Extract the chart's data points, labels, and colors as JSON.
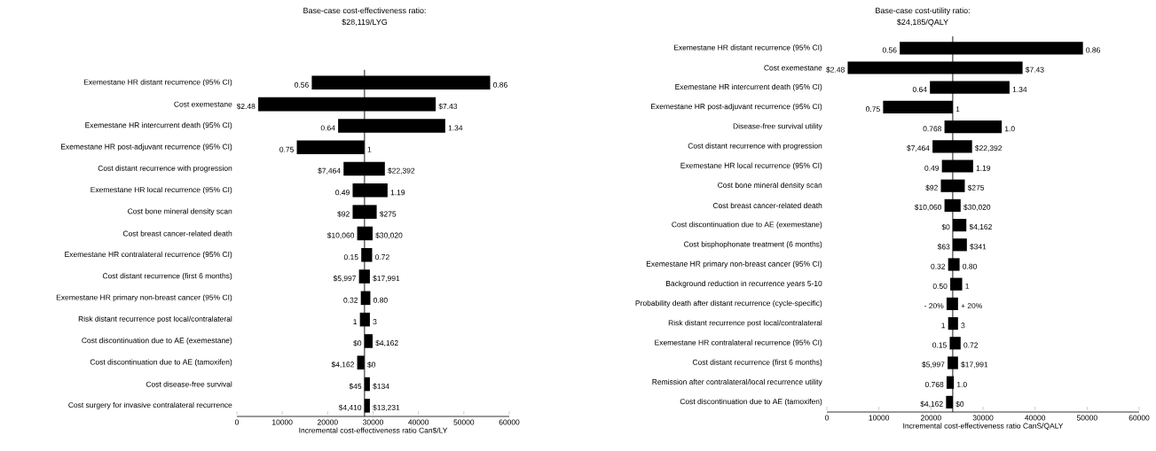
{
  "chart_data": [
    {
      "type": "bar",
      "orientation": "horizontal",
      "title": "Base-case cost-effectiveness ratio:",
      "subtitle": "$28,119/LYG",
      "xlabel": "Incremental cost-effectiveness ratio Can$/LY",
      "categories": [
        "Exemestane HR distant recurrence (95% CI)",
        "Cost exemestane",
        "Exemestane HR intercurrent death (95% CI)",
        "Exemestane HR post-adjuvant recurrence (95% CI)",
        "Cost distant recurrence with progression",
        "Exemestane HR local recurrence (95% CI)",
        "Cost bone mineral density scan",
        "Cost breast cancer-related death",
        "Exemestane HR contralateral recurrence (95% CI)",
        "Cost distant recurrence (first 6 months)",
        "Exemestane HR primary non-breast cancer (95% CI)",
        "Risk distant recurrence post local/contralateral",
        "Cost discontinuation due to AE (exemestane)",
        "Cost discontinuation due to AE (tamoxifen)",
        "Cost disease-free survival",
        "Cost surgery for invasive contralateral recurrence"
      ],
      "base": [
        16500,
        4700,
        22300,
        13200,
        23500,
        25500,
        25500,
        26500,
        27400,
        26900,
        27300,
        27100,
        28100,
        26500,
        28100,
        28100
      ],
      "values": [
        39300,
        39100,
        23600,
        14900,
        9100,
        7700,
        5300,
        3400,
        2400,
        2400,
        2100,
        2200,
        1800,
        1600,
        1200,
        1200
      ],
      "color": "#000000",
      "xlim": [
        0,
        60000
      ],
      "xticks": [
        0,
        10000,
        20000,
        30000,
        40000,
        50000,
        60000
      ],
      "ref_lines": [
        {
          "axis": "x",
          "value": 28119,
          "color": "#000000"
        }
      ],
      "annotations": [
        {
          "text": "0.56",
          "x": 16500,
          "y": "Exemestane HR distant recurrence (95% CI)"
        },
        {
          "text": "0.86",
          "x": 55800,
          "y": "Exemestane HR distant recurrence (95% CI)"
        },
        {
          "text": "$2.48",
          "x": 4700,
          "y": "Cost exemestane"
        },
        {
          "text": "$7.43",
          "x": 43800,
          "y": "Cost exemestane"
        },
        {
          "text": "0.64",
          "x": 22300,
          "y": "Exemestane HR intercurrent death (95% CI)"
        },
        {
          "text": "1.34",
          "x": 45900,
          "y": "Exemestane HR intercurrent death (95% CI)"
        },
        {
          "text": "0.75",
          "x": 13200,
          "y": "Exemestane HR post-adjuvant recurrence (95% CI)"
        },
        {
          "text": "1",
          "x": 28100,
          "y": "Exemestane HR post-adjuvant recurrence (95% CI)"
        },
        {
          "text": "$7,464",
          "x": 23500,
          "y": "Cost distant recurrence with progression"
        },
        {
          "text": "$22,392",
          "x": 32600,
          "y": "Cost distant recurrence with progression"
        },
        {
          "text": "0.49",
          "x": 25500,
          "y": "Exemestane HR local recurrence (95% CI)"
        },
        {
          "text": "1.19",
          "x": 33200,
          "y": "Exemestane HR local recurrence (95% CI)"
        },
        {
          "text": "$92",
          "x": 25500,
          "y": "Cost bone mineral density scan"
        },
        {
          "text": "$275",
          "x": 30800,
          "y": "Cost bone mineral density scan"
        },
        {
          "text": "$10,060",
          "x": 26500,
          "y": "Cost breast cancer-related death"
        },
        {
          "text": "$30,020",
          "x": 29900,
          "y": "Cost breast cancer-related death"
        },
        {
          "text": "0.15",
          "x": 27400,
          "y": "Exemestane HR contralateral recurrence (95% CI)"
        },
        {
          "text": "0.72",
          "x": 29800,
          "y": "Exemestane HR contralateral recurrence (95% CI)"
        },
        {
          "text": "$5,997",
          "x": 26900,
          "y": "Cost distant recurrence (first 6 months)"
        },
        {
          "text": "$17,991",
          "x": 29300,
          "y": "Cost distant recurrence (first 6 months)"
        },
        {
          "text": "0.32",
          "x": 27300,
          "y": "Exemestane HR primary non-breast cancer (95% CI)"
        },
        {
          "text": "0.80",
          "x": 29400,
          "y": "Exemestane HR primary non-breast cancer (95% CI)"
        },
        {
          "text": "1",
          "x": 27100,
          "y": "Risk distant recurrence post local/contralateral"
        },
        {
          "text": "3",
          "x": 29300,
          "y": "Risk distant recurrence post local/contralateral"
        },
        {
          "text": "$0",
          "x": 28100,
          "y": "Cost discontinuation due to AE (exemestane)"
        },
        {
          "text": "$4,162",
          "x": 29900,
          "y": "Cost discontinuation due to AE (exemestane)"
        },
        {
          "text": "$4,162",
          "x": 26500,
          "y": "Cost discontinuation due to AE (tamoxifen)"
        },
        {
          "text": "$0",
          "x": 28100,
          "y": "Cost discontinuation due to AE (tamoxifen)"
        },
        {
          "text": "$45",
          "x": 28100,
          "y": "Cost disease-free survival"
        },
        {
          "text": "$134",
          "x": 29300,
          "y": "Cost disease-free survival"
        },
        {
          "text": "$4,410",
          "x": 28100,
          "y": "Cost surgery for invasive contralateral recurrence"
        },
        {
          "text": "$13,231",
          "x": 29300,
          "y": "Cost surgery for invasive contralateral recurrence"
        }
      ]
    },
    {
      "type": "bar",
      "orientation": "horizontal",
      "title": "Base-case cost-utility ratio:",
      "subtitle": "$24,185/QALY",
      "xlabel": "Incremental cost-effectiveness ratio CanS/QALY",
      "categories": [
        "Exemestane HR distant recurrence (95% CI)",
        "Cost exemestane",
        "Exemestane HR intercurrent death (95% CI)",
        "Exemestane HR post-adjuvant recurrence (95% CI)",
        "Disease-free survival utility",
        "Cost distant recurrence with progression",
        "Exemestane HR local recurrence (95% CI)",
        "Cost bone mineral density scan",
        "Cost breast cancer-related death",
        "Cost discontinuation due to AE (exemestane)",
        "Cost bisphophonate treatment (6 months)",
        "Exemestane HR primary non-breast cancer (95% CI)",
        "Background reduction in recurrence years 5-10",
        "Probability death after distant recurrence (cycle-specific)",
        "Risk distant recurrence post local/contralateral",
        "Exemestane HR contralateral recurrence (95% CI)",
        "Cost distant recurrence (first 6 months)",
        "Remission after contralateral/local recurrence utility",
        "Cost discontinuation due to AE (tamoxifen)"
      ],
      "base": [
        14000,
        4000,
        19800,
        10800,
        22600,
        20300,
        22100,
        21900,
        22600,
        24200,
        24200,
        23300,
        23700,
        23000,
        23300,
        23600,
        23200,
        23000,
        22900
      ],
      "values": [
        35200,
        33600,
        15300,
        13400,
        11000,
        7600,
        6000,
        4600,
        3100,
        2600,
        2700,
        2200,
        2300,
        2200,
        1900,
        2100,
        2000,
        1400,
        1300
      ],
      "color": "#000000",
      "xlim": [
        0,
        60000
      ],
      "xticks": [
        0,
        10000,
        20000,
        30000,
        40000,
        50000,
        60000
      ],
      "ref_lines": [
        {
          "axis": "x",
          "value": 24185,
          "color": "#000000"
        }
      ],
      "annotations": [
        {
          "text": "0.56",
          "x": 14000,
          "y": "Exemestane HR distant recurrence (95% CI)"
        },
        {
          "text": "0.86",
          "x": 49200,
          "y": "Exemestane HR distant recurrence (95% CI)"
        },
        {
          "text": "$2.48",
          "x": 4000,
          "y": "Cost exemestane"
        },
        {
          "text": "$7.43",
          "x": 37600,
          "y": "Cost exemestane"
        },
        {
          "text": "0.64",
          "x": 19800,
          "y": "Exemestane HR intercurrent death (95% CI)"
        },
        {
          "text": "1.34",
          "x": 35100,
          "y": "Exemestane HR intercurrent death (95% CI)"
        },
        {
          "text": "0.75",
          "x": 10800,
          "y": "Exemestane HR post-adjuvant recurrence (95% CI)"
        },
        {
          "text": "1",
          "x": 24200,
          "y": "Exemestane HR post-adjuvant recurrence (95% CI)"
        },
        {
          "text": "0.768",
          "x": 22600,
          "y": "Disease-free survival utility"
        },
        {
          "text": "1.0",
          "x": 33600,
          "y": "Disease-free survival utility"
        },
        {
          "text": "$7,464",
          "x": 20300,
          "y": "Cost distant recurrence with progression"
        },
        {
          "text": "$22,392",
          "x": 27900,
          "y": "Cost distant recurrence with progression"
        },
        {
          "text": "0.49",
          "x": 22100,
          "y": "Exemestane HR local recurrence (95% CI)"
        },
        {
          "text": "1.19",
          "x": 28100,
          "y": "Exemestane HR local recurrence (95% CI)"
        },
        {
          "text": "$92",
          "x": 21900,
          "y": "Cost bone mineral density scan"
        },
        {
          "text": "$275",
          "x": 26500,
          "y": "Cost bone mineral density scan"
        },
        {
          "text": "$10,060",
          "x": 22600,
          "y": "Cost breast cancer-related death"
        },
        {
          "text": "$30,020",
          "x": 25700,
          "y": "Cost breast cancer-related death"
        },
        {
          "text": "$0",
          "x": 24200,
          "y": "Cost discontinuation due to AE (exemestane)"
        },
        {
          "text": "$4,162",
          "x": 26800,
          "y": "Cost discontinuation due to AE (exemestane)"
        },
        {
          "text": "$63",
          "x": 24200,
          "y": "Cost bisphophonate treatment (6 months)"
        },
        {
          "text": "$341",
          "x": 26900,
          "y": "Cost bisphophonate treatment (6 months)"
        },
        {
          "text": "0.32",
          "x": 23300,
          "y": "Exemestane HR primary non-breast cancer (95% CI)"
        },
        {
          "text": "0.80",
          "x": 25500,
          "y": "Exemestane HR primary non-breast cancer (95% CI)"
        },
        {
          "text": "0.50",
          "x": 23700,
          "y": "Background reduction in recurrence years 5-10"
        },
        {
          "text": "1",
          "x": 26000,
          "y": "Background reduction in recurrence years 5-10"
        },
        {
          "text": "- 20%",
          "x": 23000,
          "y": "Probability death after distant recurrence (cycle-specific)"
        },
        {
          "text": "+ 20%",
          "x": 25200,
          "y": "Probability death after distant recurrence (cycle-specific)"
        },
        {
          "text": "1",
          "x": 23300,
          "y": "Risk distant recurrence post local/contralateral"
        },
        {
          "text": "3",
          "x": 25200,
          "y": "Risk distant recurrence post local/contralateral"
        },
        {
          "text": "0.15",
          "x": 23600,
          "y": "Exemestane HR contralateral recurrence (95% CI)"
        },
        {
          "text": "0.72",
          "x": 25700,
          "y": "Exemestane HR contralateral recurrence (95% CI)"
        },
        {
          "text": "$5,997",
          "x": 23200,
          "y": "Cost distant recurrence (first 6 months)"
        },
        {
          "text": "$17,991",
          "x": 25200,
          "y": "Cost distant recurrence (first 6 months)"
        },
        {
          "text": "0.768",
          "x": 23000,
          "y": "Remission after contralateral/local recurrence utility"
        },
        {
          "text": "1.0",
          "x": 24400,
          "y": "Remission after contralateral/local recurrence utility"
        },
        {
          "text": "$4,162",
          "x": 22900,
          "y": "Cost discontinuation due to AE (tamoxifen)"
        },
        {
          "text": "$0",
          "x": 24200,
          "y": "Cost discontinuation due to AE (tamoxifen)"
        }
      ]
    }
  ]
}
